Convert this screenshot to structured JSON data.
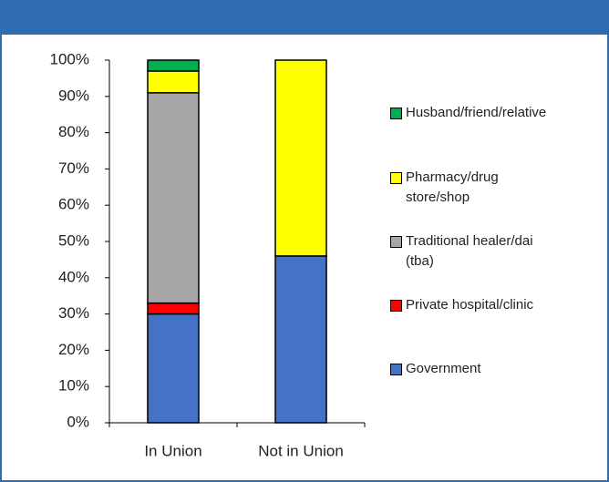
{
  "chart_data": {
    "type": "stacked_bar",
    "categories": [
      "In Union",
      "Not in Union"
    ],
    "series": [
      {
        "name": "Government",
        "color": "#4472c4",
        "values": [
          30,
          46
        ]
      },
      {
        "name": "Private hospital/clinic",
        "color": "#ff0000",
        "values": [
          3,
          0
        ]
      },
      {
        "name": "Traditional healer/dai (tba)",
        "color": "#a6a6a6",
        "values": [
          58,
          0
        ]
      },
      {
        "name": "Pharmacy/drug store/shop",
        "color": "#ffff00",
        "values": [
          6,
          54
        ]
      },
      {
        "name": "Husband/friend/relative",
        "color": "#00b050",
        "values": [
          3,
          0
        ]
      }
    ],
    "ylim": [
      0,
      100
    ],
    "yticks": [
      {
        "value": 0,
        "label": "0%"
      },
      {
        "value": 10,
        "label": "10%"
      },
      {
        "value": 20,
        "label": "20%"
      },
      {
        "value": 30,
        "label": "30%"
      },
      {
        "value": 40,
        "label": "40%"
      },
      {
        "value": 50,
        "label": "50%"
      },
      {
        "value": 60,
        "label": "60%"
      },
      {
        "value": 70,
        "label": "70%"
      },
      {
        "value": 80,
        "label": "80%"
      },
      {
        "value": 90,
        "label": "90%"
      },
      {
        "value": 100,
        "label": "100%"
      }
    ],
    "legend": "right"
  }
}
